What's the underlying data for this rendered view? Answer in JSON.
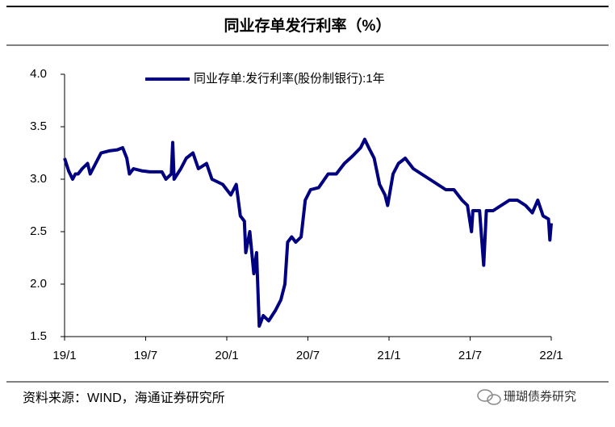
{
  "chart_data": {
    "type": "line",
    "title": "同业存单发行利率（%）",
    "x": [
      0,
      0.3,
      0.6,
      0.8,
      1.0,
      1.3,
      1.7,
      1.9,
      2.3,
      2.7,
      3.3,
      3.9,
      4.3,
      4.6,
      4.8,
      5.1,
      5.7,
      6.3,
      7.2,
      7.5,
      7.9,
      8.0,
      8.1,
      8.6,
      9.0,
      9.5,
      9.9,
      10.5,
      10.9,
      11.7,
      12.3,
      12.7,
      13.0,
      13.3,
      13.4,
      13.7,
      14.0,
      14.2,
      14.4,
      14.7,
      15.1,
      15.6,
      16.0,
      16.3,
      16.5,
      16.8,
      17.1,
      17.5,
      17.8,
      18.2,
      18.8,
      19.5,
      20.1,
      20.7,
      21.3,
      21.9,
      22.2,
      22.5,
      22.9,
      23.3,
      23.7,
      23.9,
      24.3,
      24.7,
      25.2,
      25.8,
      26.4,
      27.0,
      27.6,
      28.2,
      28.8,
      29.4,
      29.8,
      30.1,
      30.2,
      30.7,
      31.0,
      31.2,
      31.7,
      32.3,
      32.9,
      33.5,
      34.1,
      34.6,
      35.0,
      35.4,
      35.8,
      35.9,
      36.0
    ],
    "series": [
      {
        "name": "同业存单:发行利率(股份制银行):1年",
        "color": "#000080",
        "values": [
          3.2,
          3.08,
          3.0,
          3.05,
          3.05,
          3.1,
          3.15,
          3.05,
          3.15,
          3.25,
          3.27,
          3.28,
          3.3,
          3.2,
          3.05,
          3.1,
          3.08,
          3.07,
          3.07,
          3.0,
          3.05,
          3.35,
          3.0,
          3.1,
          3.2,
          3.25,
          3.1,
          3.15,
          3.0,
          2.95,
          2.85,
          2.95,
          2.65,
          2.6,
          2.3,
          2.5,
          2.1,
          2.3,
          1.6,
          1.7,
          1.65,
          1.75,
          1.85,
          2.0,
          2.4,
          2.45,
          2.4,
          2.45,
          2.8,
          2.9,
          2.92,
          3.05,
          3.05,
          3.15,
          3.22,
          3.3,
          3.38,
          3.3,
          3.2,
          2.95,
          2.85,
          2.75,
          3.05,
          3.15,
          3.2,
          3.1,
          3.05,
          3.0,
          2.95,
          2.9,
          2.9,
          2.8,
          2.75,
          2.5,
          2.7,
          2.7,
          2.18,
          2.7,
          2.7,
          2.75,
          2.8,
          2.8,
          2.75,
          2.68,
          2.8,
          2.65,
          2.62,
          2.42,
          2.58
        ]
      }
    ],
    "xlim": [
      0,
      36
    ],
    "xticks": [
      {
        "value": 0,
        "label": "19/1"
      },
      {
        "value": 6,
        "label": "19/7"
      },
      {
        "value": 12,
        "label": "20/1"
      },
      {
        "value": 18,
        "label": "20/7"
      },
      {
        "value": 24,
        "label": "21/1"
      },
      {
        "value": 30,
        "label": "21/7"
      },
      {
        "value": 36,
        "label": "22/1"
      }
    ],
    "ylim": [
      1.5,
      4.0
    ],
    "yticks": [
      1.5,
      {
        "value": 2,
        "label": "2.0"
      },
      2.5,
      {
        "value": 3,
        "label": "3.0"
      },
      3.5,
      {
        "value": 4,
        "label": "4.0"
      }
    ],
    "source": "资料来源：WIND，海通证券研究所",
    "watermark": "珊瑚债券研究"
  }
}
